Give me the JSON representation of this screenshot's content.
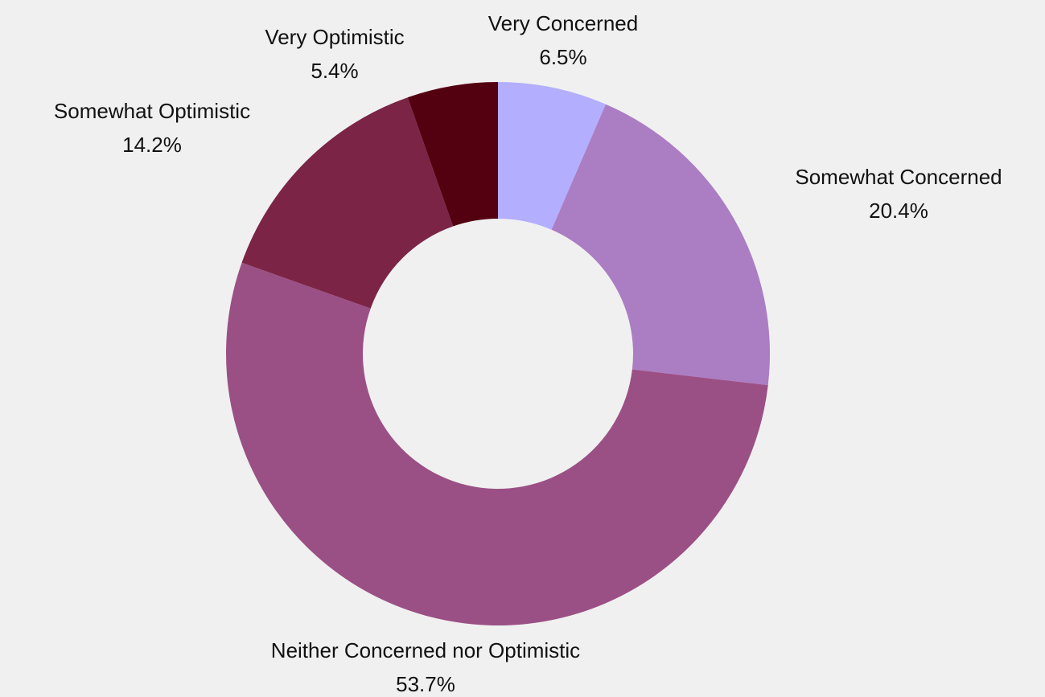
{
  "chart_data": {
    "type": "pie",
    "donut": true,
    "title": "",
    "slices": [
      {
        "label": "Very Concerned",
        "value": 6.5,
        "display": "6.5%",
        "color": "#b3aefd"
      },
      {
        "label": "Somewhat Concerned",
        "value": 20.4,
        "display": "20.4%",
        "color": "#ab7dc3"
      },
      {
        "label": "Neither Concerned nor Optimistic",
        "value": 53.7,
        "display": "53.7%",
        "color": "#9b5085"
      },
      {
        "label": "Somewhat Optimistic",
        "value": 14.2,
        "display": "14.2%",
        "color": "#7b2446"
      },
      {
        "label": "Very Optimistic",
        "value": 5.4,
        "display": "5.4%",
        "color": "#530011"
      }
    ]
  },
  "colors": {
    "background": "#f0f0f0"
  }
}
